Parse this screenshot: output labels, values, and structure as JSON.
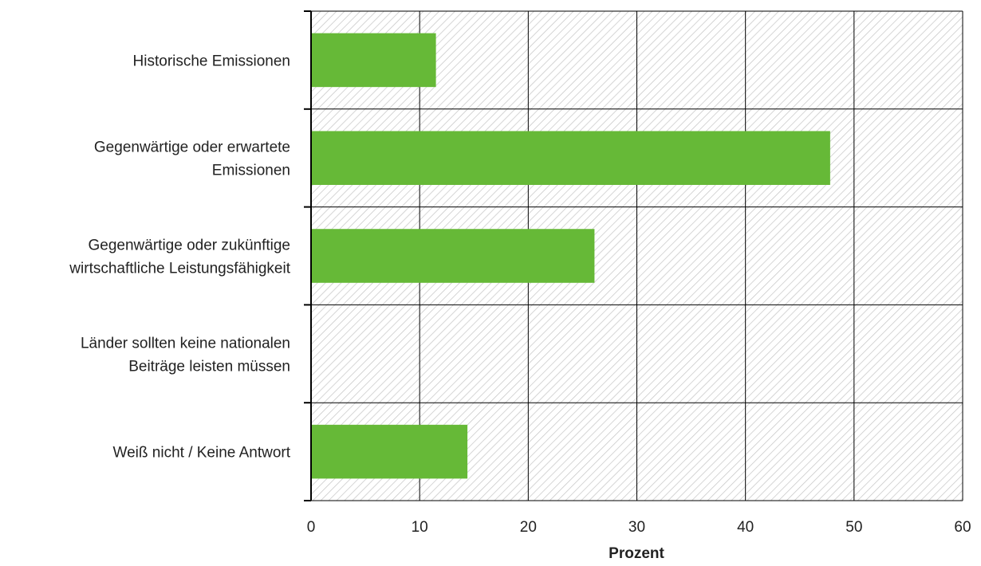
{
  "chart_data": {
    "type": "bar",
    "orientation": "horizontal",
    "categories": [
      [
        "Historische Emissionen"
      ],
      [
        "Gegenwärtige oder erwartete",
        "Emissionen"
      ],
      [
        "Gegenwärtige oder zukünftige",
        "wirtschaftliche Leistungsfähigkeit"
      ],
      [
        "Länder sollten keine nationalen",
        "Beiträge leisten müssen"
      ],
      [
        "Weiß nicht / Keine Antwort"
      ]
    ],
    "values": [
      11.5,
      47.8,
      26.1,
      0,
      14.4
    ],
    "xlabel": "Prozent",
    "ylabel": "",
    "xlim": [
      0,
      60
    ],
    "xticks": [
      "0",
      "10",
      "20",
      "30",
      "40",
      "50",
      "60"
    ],
    "grid": true,
    "bar_color": "#66b937",
    "plot_background": "hatched light grey",
    "legend": "none"
  }
}
